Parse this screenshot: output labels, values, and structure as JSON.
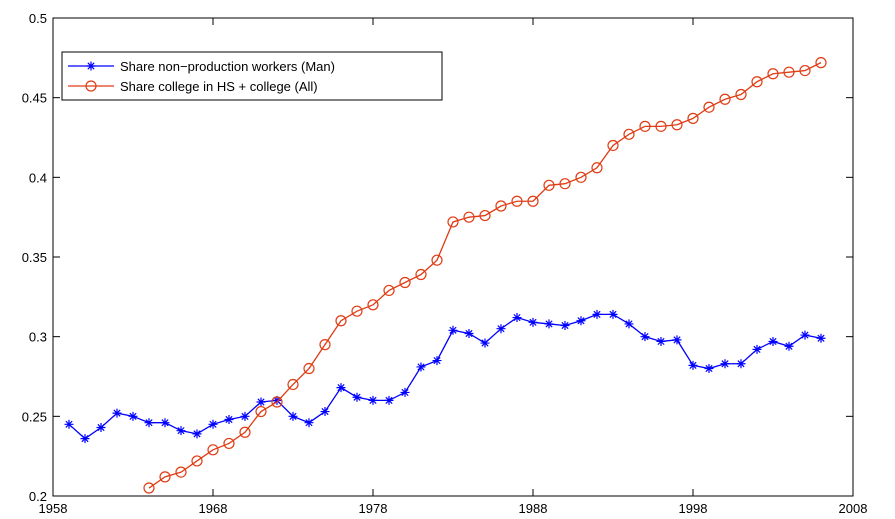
{
  "chart_data": {
    "type": "line",
    "x": [
      1959,
      1960,
      1961,
      1962,
      1963,
      1964,
      1965,
      1966,
      1967,
      1968,
      1969,
      1970,
      1971,
      1972,
      1973,
      1974,
      1975,
      1976,
      1977,
      1978,
      1979,
      1980,
      1981,
      1982,
      1983,
      1984,
      1985,
      1986,
      1987,
      1988,
      1989,
      1990,
      1991,
      1992,
      1993,
      1994,
      1995,
      1996,
      1997,
      1998,
      1999,
      2000,
      2001,
      2002,
      2003,
      2004,
      2005,
      2006
    ],
    "series": [
      {
        "name": "Share non−production workers (Man)",
        "color": "#0000ff",
        "marker": "star",
        "values": [
          0.245,
          0.236,
          0.243,
          0.252,
          0.25,
          0.246,
          0.246,
          0.241,
          0.239,
          0.245,
          0.248,
          0.25,
          0.259,
          0.26,
          0.25,
          0.246,
          0.253,
          0.268,
          0.262,
          0.26,
          0.26,
          0.265,
          0.281,
          0.285,
          0.304,
          0.302,
          0.296,
          0.305,
          0.312,
          0.309,
          0.308,
          0.307,
          0.31,
          0.314,
          0.314,
          0.308,
          0.3,
          0.297,
          0.298,
          0.282,
          0.28,
          0.283,
          0.283,
          0.292,
          0.297,
          0.294,
          0.301,
          0.299
        ]
      },
      {
        "name": "Share college in HS + college (All)",
        "color": "#e03c14",
        "marker": "circle",
        "values": [
          null,
          null,
          null,
          null,
          null,
          0.205,
          0.212,
          0.215,
          0.222,
          0.229,
          0.233,
          0.24,
          0.253,
          0.259,
          0.27,
          0.28,
          0.295,
          0.31,
          0.316,
          0.32,
          0.329,
          0.334,
          0.339,
          0.348,
          0.372,
          0.375,
          0.376,
          0.382,
          0.385,
          0.385,
          0.395,
          0.396,
          0.4,
          0.406,
          0.42,
          0.427,
          0.432,
          0.432,
          0.433,
          0.437,
          0.444,
          0.449,
          0.452,
          0.46,
          0.465,
          0.466,
          0.467,
          0.472
        ]
      }
    ],
    "xlim": [
      1958,
      2008
    ],
    "xticks": [
      1958,
      1968,
      1978,
      1988,
      1998,
      2008
    ],
    "ylim": [
      0.2,
      0.5
    ],
    "yticks": [
      0.2,
      0.25,
      0.3,
      0.35,
      0.4,
      0.45,
      0.5
    ],
    "grid": false,
    "legend": "upper left"
  }
}
